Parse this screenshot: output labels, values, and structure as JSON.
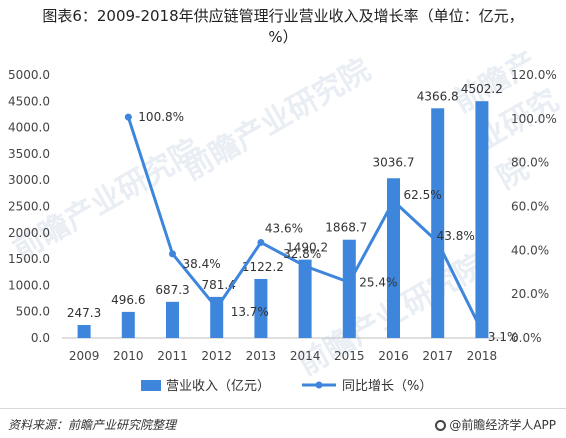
{
  "title": "图表6：2009-2018年供应链管理行业营业收入及增长率（单位：亿元，%）",
  "source": "资料来源：前瞻产业研究院整理",
  "brand": "@前瞻经济学人APP",
  "watermark": "前瞻产业研究院",
  "chart_data": {
    "type": "bar",
    "categories": [
      "2009",
      "2010",
      "2011",
      "2012",
      "2013",
      "2014",
      "2015",
      "2016",
      "2017",
      "2018"
    ],
    "series": [
      {
        "name": "营业收入（亿元）",
        "axis": "left",
        "kind": "bar",
        "color": "#3d86dc",
        "values": [
          247.3,
          496.6,
          687.3,
          781.4,
          1122.2,
          1490.2,
          1868.7,
          3036.7,
          4366.8,
          4502.2
        ],
        "labels": [
          "247.3",
          "496.6",
          "687.3",
          "781.4",
          "1122.2",
          "1490.2",
          "1868.7",
          "3036.7",
          "4366.8",
          "4502.2"
        ]
      },
      {
        "name": "同比增长（%）",
        "axis": "right",
        "kind": "line",
        "color": "#3d86dc",
        "values": [
          null,
          100.8,
          38.4,
          13.7,
          43.6,
          32.8,
          25.4,
          62.5,
          43.8,
          3.1
        ],
        "labels": [
          "",
          "100.8%",
          "38.4%",
          "13.7%",
          "43.6%",
          "32.8%",
          "25.4%",
          "62.5%",
          "43.8%",
          "3.1%"
        ]
      }
    ],
    "ylim": [
      0,
      5000
    ],
    "y2lim": [
      0,
      120
    ],
    "yticks": [
      "0.0",
      "500.0",
      "1000.0",
      "1500.0",
      "2000.0",
      "2500.0",
      "3000.0",
      "3500.0",
      "4000.0",
      "4500.0",
      "5000.0"
    ],
    "y2ticks": [
      "0.0%",
      "20.0%",
      "40.0%",
      "60.0%",
      "80.0%",
      "100.0%",
      "120.0%"
    ],
    "legend": "bottom",
    "grid": false
  }
}
